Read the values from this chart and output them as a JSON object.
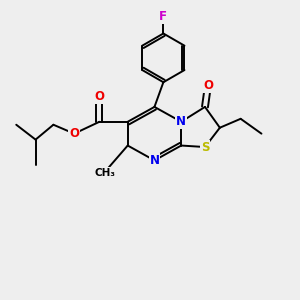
{
  "bg_color": "#eeeeee",
  "bond_color": "#000000",
  "bond_width": 1.4,
  "atom_colors": {
    "N": "#0000ee",
    "O": "#ee0000",
    "S": "#bbbb00",
    "F": "#cc00cc",
    "C": "#000000"
  },
  "font_size_atom": 8.5,
  "font_size_methyl": 7.5
}
